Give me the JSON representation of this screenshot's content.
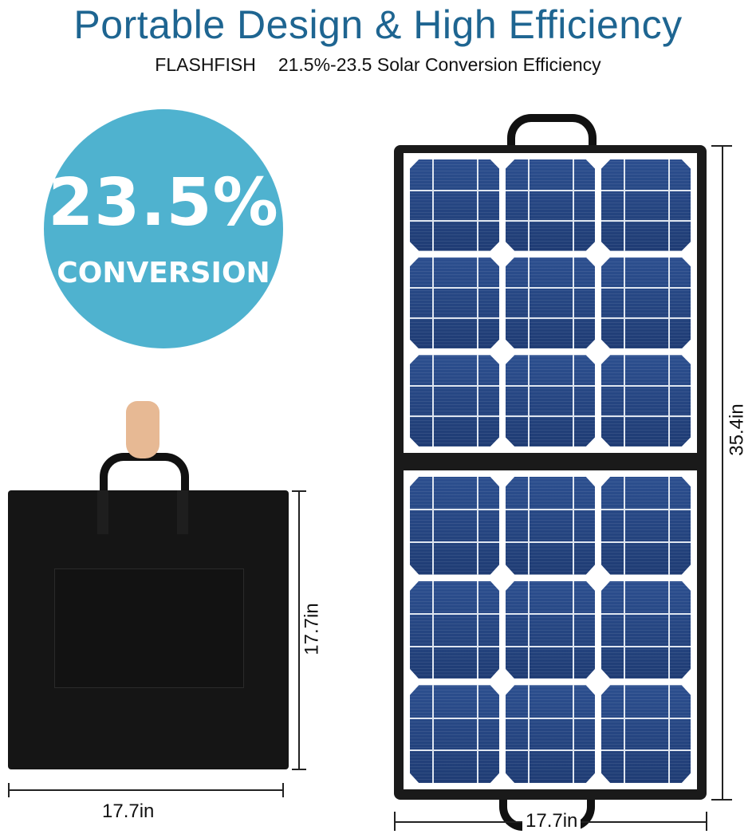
{
  "header": {
    "title": "Portable Design & High Efficiency",
    "brand": "FLASHFISH",
    "tagline": "21.5%-23.5 Solar Conversion Efficiency"
  },
  "badge": {
    "value": "23.5%",
    "label": "CONVERSION",
    "color": "#4fb2cf"
  },
  "folded_bag": {
    "height_label": "17.7in",
    "width_label": "17.7in"
  },
  "unfolded_panel": {
    "height_label": "35.4in",
    "width_label": "17.7in",
    "cell_color": "#24457f"
  },
  "colors": {
    "title": "#1e6591",
    "bag": "#151515"
  }
}
